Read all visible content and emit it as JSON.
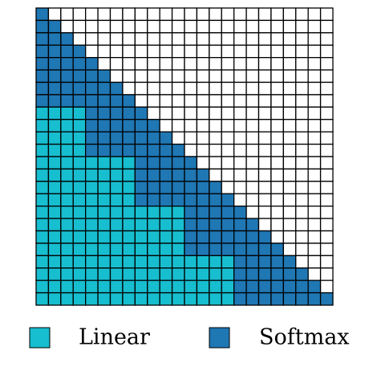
{
  "legend": [
    {
      "label": "Linear",
      "color": "#17becf"
    },
    {
      "label": "Softmax",
      "color": "#1f77b4"
    }
  ]
}
